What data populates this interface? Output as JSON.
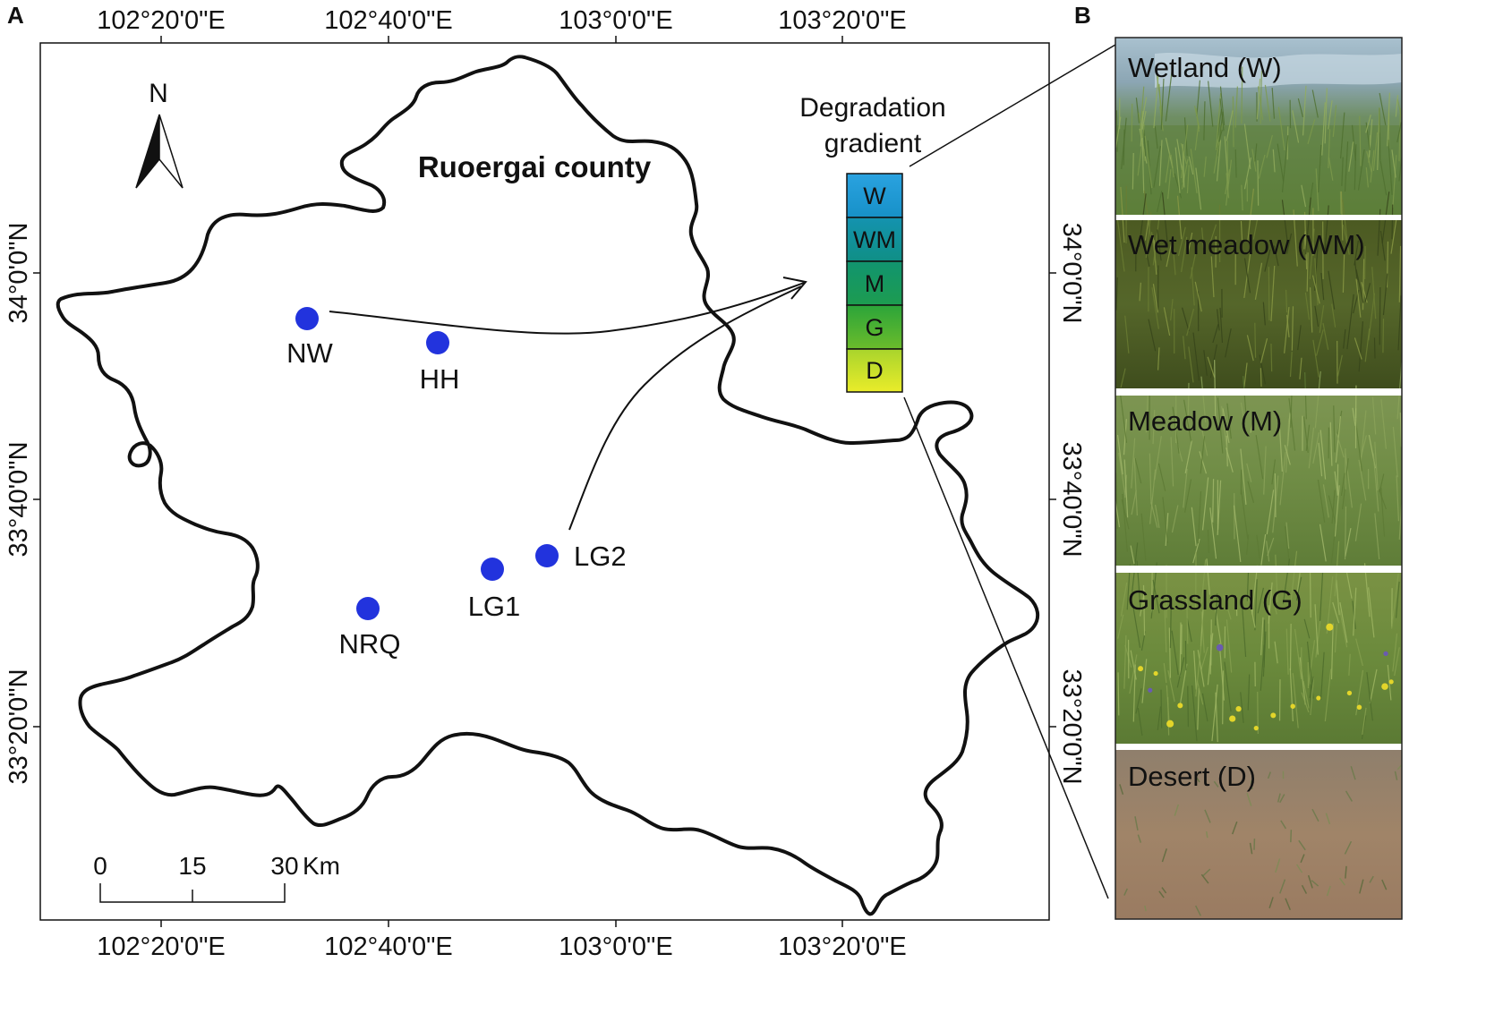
{
  "panels": {
    "a": "A",
    "b": "B"
  },
  "axes": {
    "top": [
      "102°20'0\"E",
      "102°40'0\"E",
      "103°0'0\"E",
      "103°20'0\"E"
    ],
    "bottom": [
      "102°20'0\"E",
      "102°40'0\"E",
      "103°0'0\"E",
      "103°20'0\"E"
    ],
    "left": [
      "34°0'0\"N",
      "33°40'0\"N",
      "33°20'0\"N"
    ],
    "right": [
      "34°0'0\"N",
      "33°40'0\"N",
      "33°20'0\"N"
    ]
  },
  "map": {
    "county_label": "Ruoergai county",
    "north": "N",
    "site_color": "#2233dd",
    "sites": [
      {
        "id": "NW",
        "label": "NW"
      },
      {
        "id": "HH",
        "label": "HH"
      },
      {
        "id": "LG1",
        "label": "LG1"
      },
      {
        "id": "LG2",
        "label": "LG2"
      },
      {
        "id": "NRQ",
        "label": "NRQ"
      }
    ]
  },
  "gradient": {
    "title_line1": "Degradation",
    "title_line2": "gradient",
    "levels": [
      "W",
      "WM",
      "M",
      "G",
      "D"
    ],
    "colors": [
      "#1e9ad8",
      "#0f8f92",
      "#149b62",
      "#49b22c",
      "#dfe82a"
    ]
  },
  "scalebar": {
    "ticks": [
      "0",
      "15",
      "30"
    ],
    "unit": "Km"
  },
  "photos": [
    {
      "label": "Wetland (W)"
    },
    {
      "label": "Wet meadow (WM)"
    },
    {
      "label": "Meadow (M)"
    },
    {
      "label": "Grassland (G)"
    },
    {
      "label": "Desert (D)"
    }
  ]
}
